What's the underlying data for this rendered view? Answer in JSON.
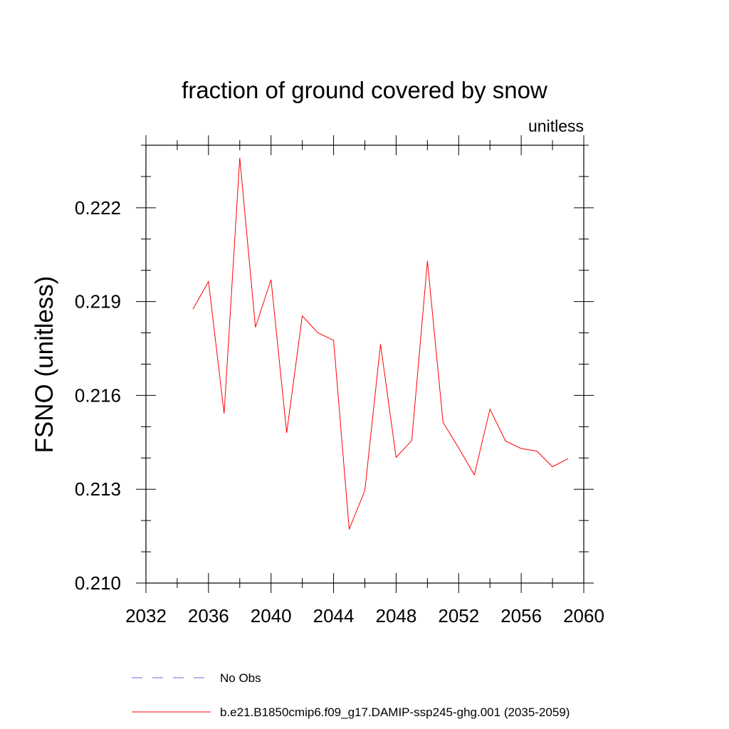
{
  "chart_data": {
    "type": "line",
    "title": "fraction of ground covered by snow",
    "units_label": "unitless",
    "ylabel": "FSNO  (unitless)",
    "xlabel": "",
    "xlim": [
      2032,
      2060
    ],
    "ylim": [
      0.21,
      0.224
    ],
    "x_ticks": [
      2032,
      2036,
      2040,
      2044,
      2048,
      2052,
      2056,
      2060
    ],
    "x_tick_labels": [
      "2032",
      "2036",
      "2040",
      "2044",
      "2048",
      "2052",
      "2056",
      "2060"
    ],
    "x_minor_step": 2,
    "y_ticks": [
      0.21,
      0.213,
      0.216,
      0.219,
      0.222
    ],
    "y_tick_labels": [
      "0.210",
      "0.213",
      "0.216",
      "0.219",
      "0.222"
    ],
    "y_minor_step": 0.001,
    "grid": false,
    "legend_position": "bottom",
    "series": [
      {
        "name": "b.e21.B1850cmip6.f09_g17.DAMIP-ssp245-ghg.001 (2035-2059)",
        "color": "#ff0000",
        "style": "solid",
        "x": [
          2035,
          2036,
          2037,
          2038,
          2039,
          2040,
          2041,
          2042,
          2043,
          2044,
          2045,
          2046,
          2047,
          2048,
          2049,
          2050,
          2051,
          2052,
          2053,
          2054,
          2055,
          2056,
          2057,
          2058,
          2059
        ],
        "y": [
          0.21876,
          0.21964,
          0.21542,
          0.2236,
          0.21818,
          0.2197,
          0.2148,
          0.21854,
          0.218,
          0.21776,
          0.21172,
          0.21296,
          0.21764,
          0.21402,
          0.21456,
          0.2203,
          0.21514,
          0.21432,
          0.21346,
          0.21556,
          0.21454,
          0.2143,
          0.21422,
          0.21372,
          0.21398
        ]
      },
      {
        "name": "No Obs",
        "color": "#6a6ad0",
        "style": "dashed",
        "x": [],
        "y": []
      }
    ]
  }
}
